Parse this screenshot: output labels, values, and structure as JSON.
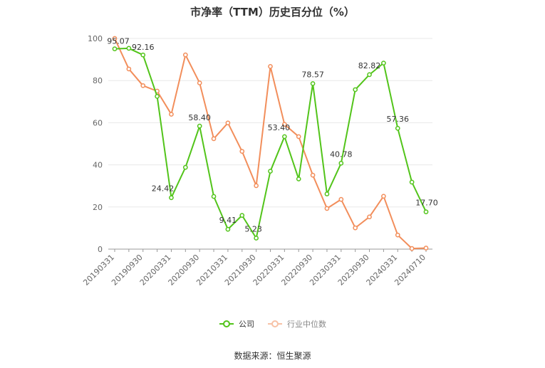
{
  "chart_data": {
    "type": "line",
    "title": "市净率（TTM）历史百分位（%）",
    "xlabel": "",
    "ylabel": "",
    "ylim": [
      0,
      100
    ],
    "yticks": [
      0,
      20,
      40,
      60,
      80,
      100
    ],
    "x": [
      "20190331",
      "20190630",
      "20190930",
      "20191231",
      "20200331",
      "20200630",
      "20200930",
      "20201231",
      "20210331",
      "20210630",
      "20210930",
      "20211231",
      "20220331",
      "20220630",
      "20220930",
      "20221231",
      "20230331",
      "20230630",
      "20230930",
      "20231231",
      "20240331",
      "20240630",
      "20240710"
    ],
    "x_tick_labels": [
      "20190331",
      "20190930",
      "20200331",
      "20200930",
      "20210331",
      "20210930",
      "20220331",
      "20220930",
      "20230331",
      "20230930",
      "20240331",
      "20240710"
    ],
    "grid": true,
    "legend_position": "bottom",
    "series": [
      {
        "name": "公司",
        "color": "#52c41a",
        "values": [
          95.07,
          95.3,
          92.16,
          72.5,
          24.42,
          38.8,
          58.4,
          25.0,
          9.41,
          16.0,
          5.23,
          37.0,
          53.4,
          33.3,
          78.57,
          26.2,
          40.78,
          75.7,
          82.82,
          88.3,
          57.36,
          31.8,
          17.7
        ],
        "data_labels": {
          "0": "95.07",
          "2": "92.16",
          "4": "24.42",
          "6": "58.40",
          "8": "9.41",
          "10": "5.23",
          "12": "53.40",
          "14": "78.57",
          "16": "40.78",
          "18": "82.82",
          "20": "57.36",
          "22": "17.70"
        }
      },
      {
        "name": "行业中位数",
        "color": "#f28e5b",
        "values": [
          100.0,
          85.5,
          77.6,
          75.0,
          64.0,
          92.2,
          78.9,
          52.4,
          59.9,
          46.4,
          30.1,
          86.7,
          59.2,
          53.4,
          35.1,
          19.3,
          23.6,
          10.1,
          15.3,
          25.1,
          6.7,
          0.3,
          0.5
        ]
      }
    ]
  },
  "source": "数据来源：恒生聚源"
}
